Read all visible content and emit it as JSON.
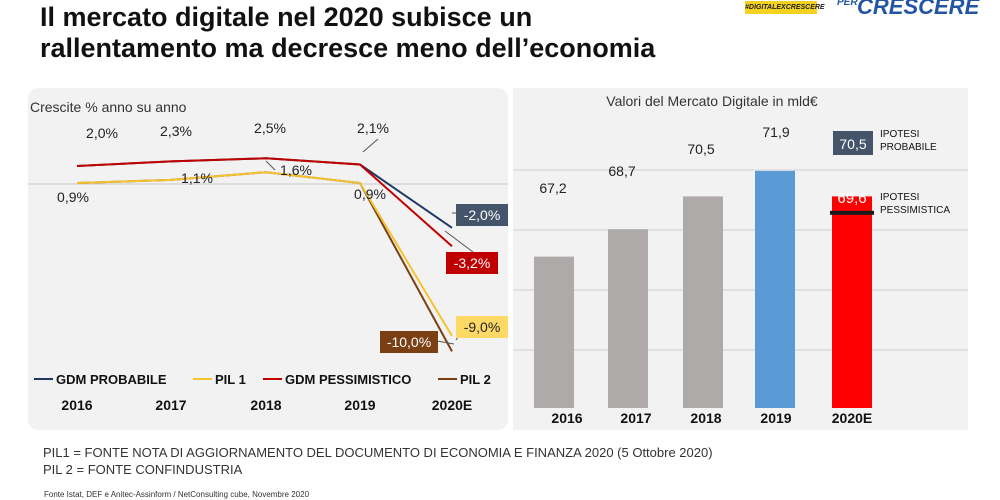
{
  "header": {
    "title_line1": "Il mercato digitale nel 2020 subisce un",
    "title_line2": "rallentamento ma decresce meno dell’economia",
    "logo_badge": "#DIGITALEXCRESCERE",
    "logo_per": "PER",
    "logo_main": "CRESCERE"
  },
  "colors": {
    "gdm_probabile": "#1f3864",
    "pil1": "#f5c230",
    "gdm_pessimistico": "#c00000",
    "pil2": "#7b3f14",
    "bar_gray": "#aeaaaa",
    "bar_blue": "#5b9bd5",
    "bar_red": "#ff0000"
  },
  "chart_data": [
    {
      "type": "line",
      "title": "Crescite % anno su anno",
      "categories": [
        "2016",
        "2017",
        "2018",
        "2019",
        "2020E"
      ],
      "series": [
        {
          "name": "GDM PROBABILE",
          "values": [
            2.0,
            2.3,
            2.5,
            2.1,
            -2.0
          ]
        },
        {
          "name": "PIL 1",
          "values": [
            0.9,
            1.1,
            1.6,
            0.9,
            -9.0
          ]
        },
        {
          "name": "GDM PESSIMISTICO",
          "values": [
            2.0,
            2.3,
            2.5,
            2.1,
            -3.2
          ]
        },
        {
          "name": "PIL 2",
          "values": [
            0.9,
            1.1,
            1.6,
            0.9,
            -10.0
          ]
        }
      ],
      "data_labels": {
        "gdm": [
          "2,0%",
          "2,3%",
          "2,5%",
          "2,1%"
        ],
        "pil": [
          "0,9%",
          "1,1%",
          "1,6%",
          "0,9%"
        ],
        "gdm_probabile_2020": "-2,0%",
        "gdm_pessimistico_2020": "-3,2%",
        "pil1_2020": "-9,0%",
        "pil2_2020": "-10,0%"
      },
      "legend_position": "bottom"
    },
    {
      "type": "bar",
      "title": "Valori del Mercato Digitale in mld€",
      "categories": [
        "2016",
        "2017",
        "2018",
        "2019",
        "2020E"
      ],
      "values": [
        67.2,
        68.7,
        70.5,
        71.9,
        70.5
      ],
      "value_labels": [
        "67,2",
        "68,7",
        "70,5",
        "71,9",
        "70,5"
      ],
      "pessimistic_2020": 69.6,
      "pessimistic_label": "69,6",
      "annotations": {
        "probabile_line1": "IPOTESI",
        "probabile_line2": "PROBABILE",
        "pessimistica_line1": "IPOTESI",
        "pessimistica_line2": "PESSIMISTICA"
      }
    }
  ],
  "footnotes": {
    "pil1": "PIL1 = FONTE NOTA DI AGGIORNAMENTO DEL DOCUMENTO DI ECONOMIA E FINANZA 2020 (5 Ottobre 2020)",
    "pil2": "PIL 2 = FONTE CONFINDUSTRIA",
    "source": "Fonte Istat, DEF e Anitec-Assinform / NetConsulting cube, Novembre 2020"
  }
}
